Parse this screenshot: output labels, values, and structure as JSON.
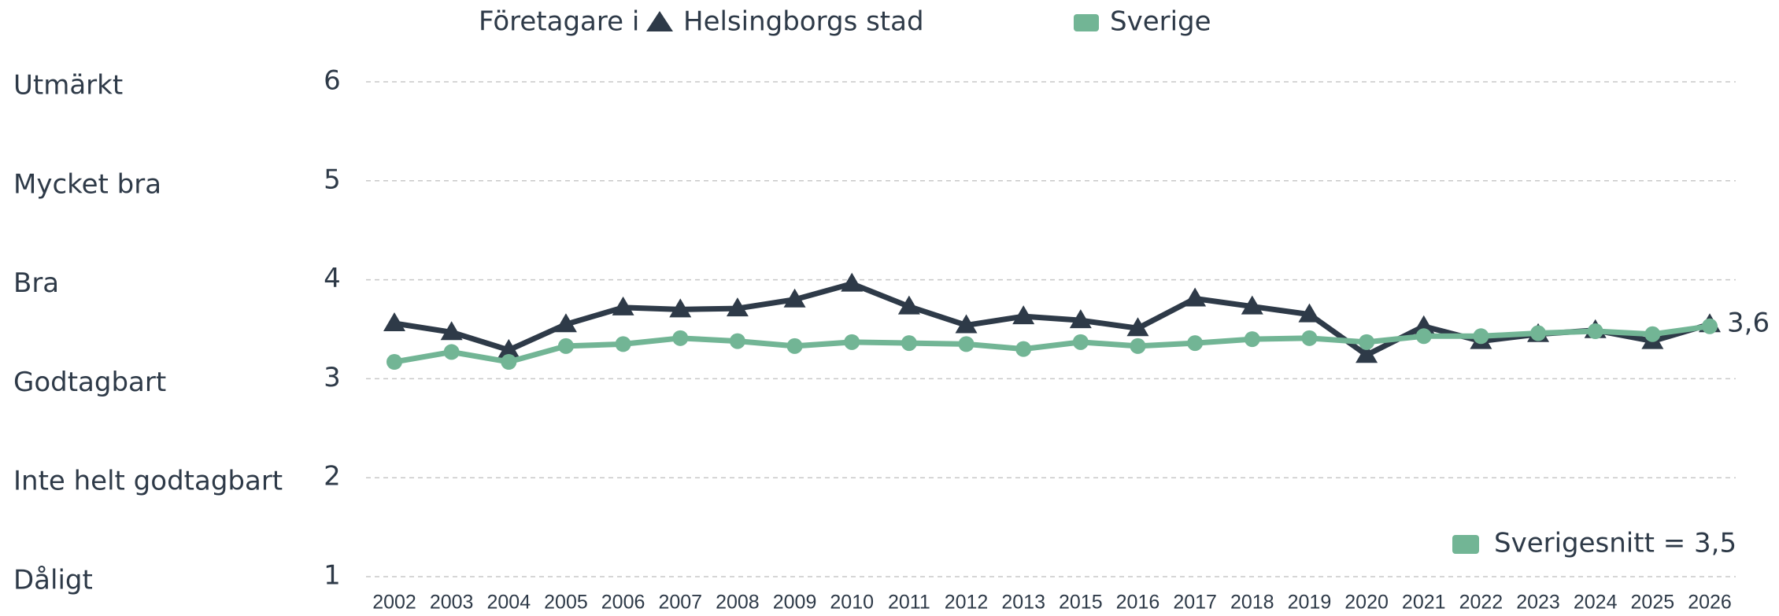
{
  "chart_data": {
    "type": "line",
    "legend_prefix": "Företagare i",
    "categories": [
      "2002",
      "2003",
      "2004",
      "2005",
      "2006",
      "2007",
      "2008",
      "2009",
      "2010",
      "2011",
      "2012",
      "2013",
      "2015",
      "2016",
      "2017",
      "2018",
      "2019",
      "2020",
      "2021",
      "2022",
      "2023",
      "2024",
      "2025",
      "2026"
    ],
    "series": [
      {
        "name": "Helsingborgs stad",
        "color": "#2e3a48",
        "marker": "triangle",
        "values": [
          3.56,
          3.47,
          3.29,
          3.55,
          3.72,
          3.7,
          3.71,
          3.8,
          3.96,
          3.73,
          3.54,
          3.63,
          3.59,
          3.51,
          3.81,
          3.73,
          3.65,
          3.24,
          3.53,
          3.38,
          3.45,
          3.49,
          3.38,
          3.55
        ],
        "value_labels": [
          null,
          null,
          null,
          null,
          null,
          null,
          null,
          null,
          null,
          null,
          null,
          null,
          null,
          null,
          null,
          null,
          null,
          null,
          null,
          null,
          null,
          null,
          null,
          "3,6"
        ]
      },
      {
        "name": "Sverige",
        "color": "#72b595",
        "marker": "circle",
        "values": [
          3.17,
          3.27,
          3.17,
          3.33,
          3.35,
          3.41,
          3.38,
          3.33,
          3.37,
          3.36,
          3.35,
          3.3,
          3.37,
          3.33,
          3.36,
          3.4,
          3.41,
          3.37,
          3.43,
          3.43,
          3.46,
          3.48,
          3.45,
          3.53
        ]
      }
    ],
    "ylim": [
      1,
      6
    ],
    "yticks": [
      1,
      2,
      3,
      4,
      5,
      6
    ],
    "ylevels": [
      "Dåligt",
      "Inte helt godtagbart",
      "Godtagbart",
      "Bra",
      "Mycket bra",
      "Utmärkt"
    ],
    "grid": true,
    "annotation": {
      "text": "Sverigesnitt = 3,5",
      "color": "#72b595"
    }
  }
}
